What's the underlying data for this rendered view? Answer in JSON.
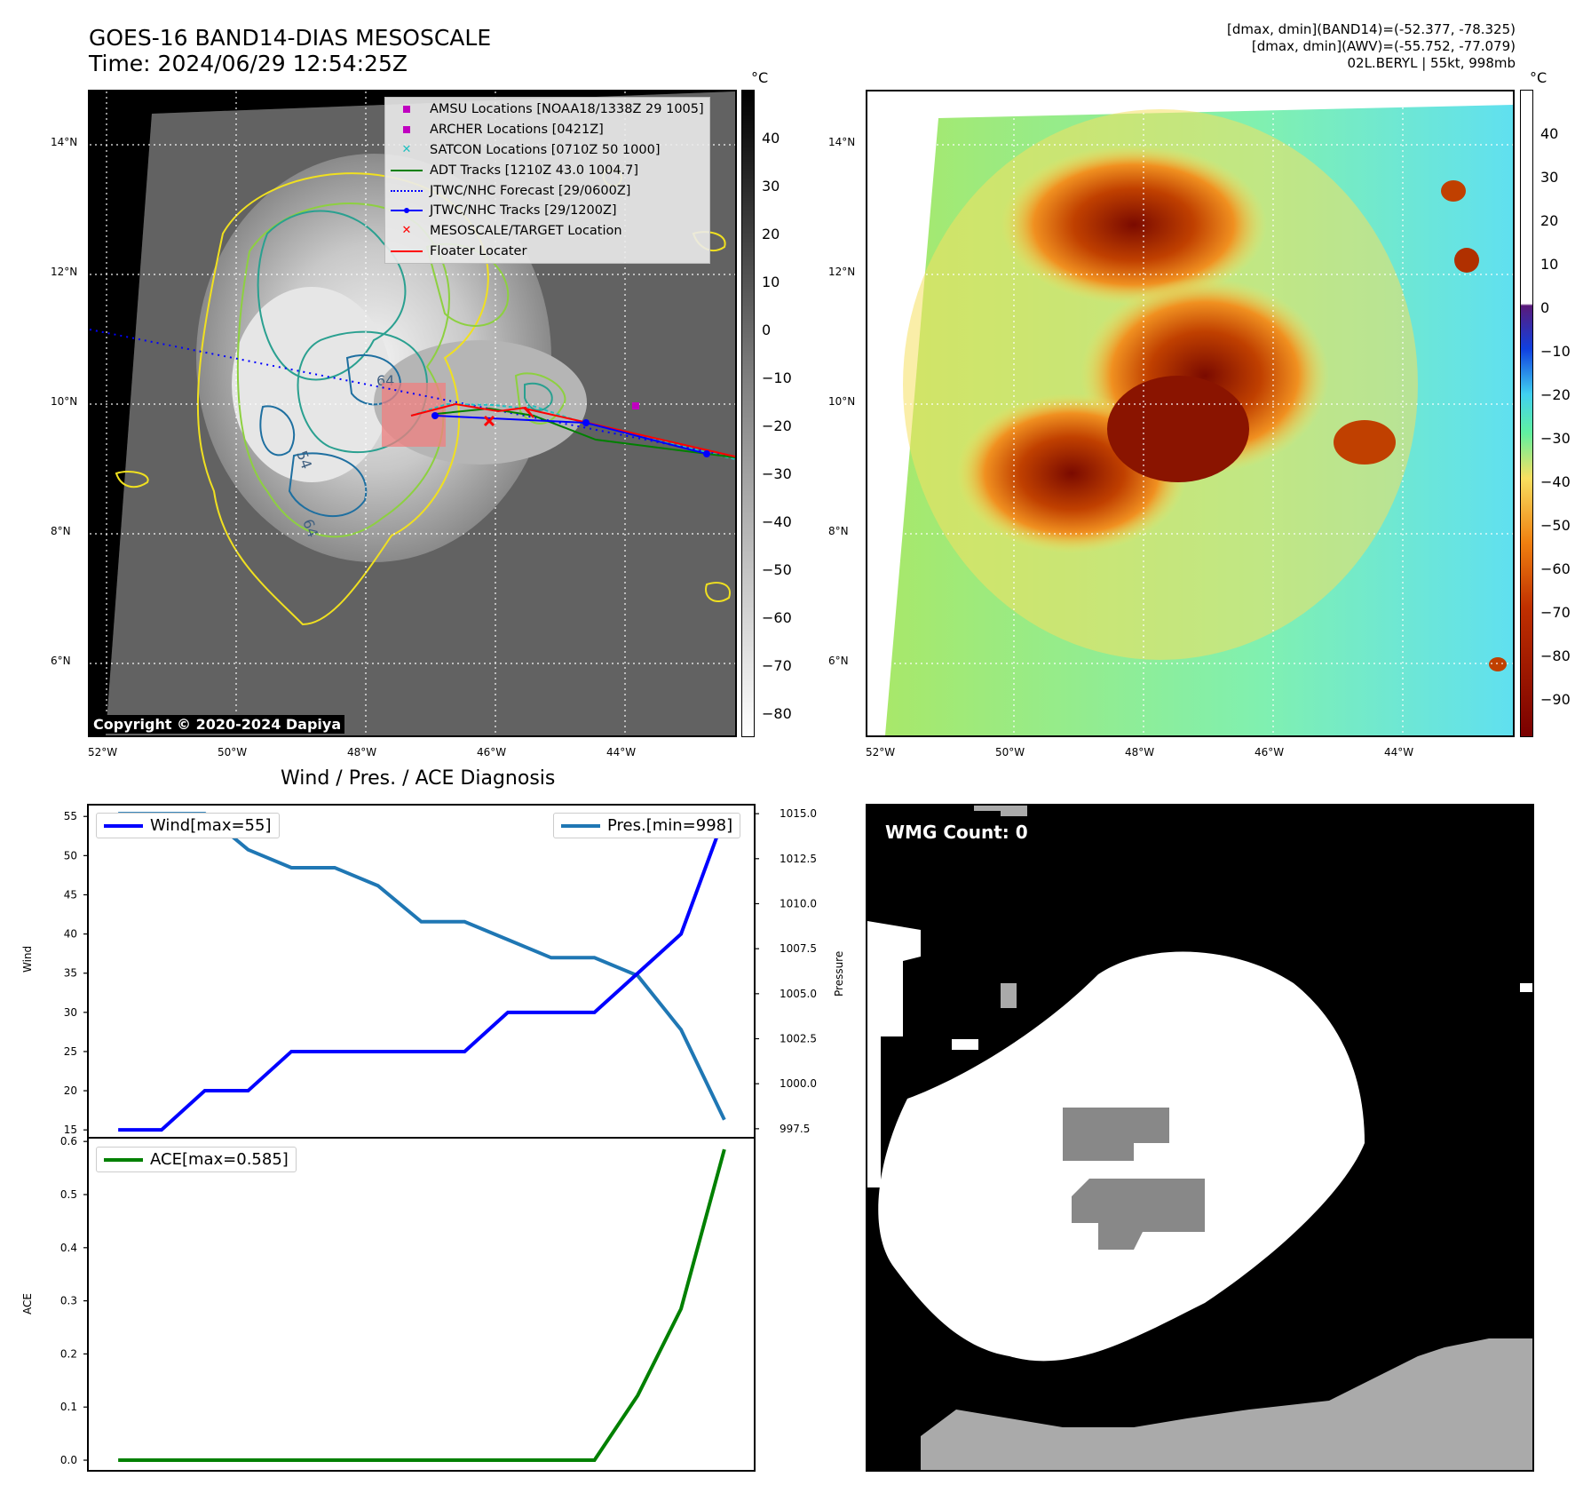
{
  "header": {
    "title_line1": "GOES-16 BAND14-DIAS MESOSCALE",
    "title_line2": "Time: 2024/06/29 12:54:25Z",
    "right_line1": "[dmax, dmin](BAND14)=(-52.377, -78.325)",
    "right_line2": "[dmax, dmin](AWV)=(-55.752, -77.079)",
    "right_line3": "02L.BERYL | 55kt, 998mb"
  },
  "map": {
    "lat_ticks": [
      "14°N",
      "12°N",
      "10°N",
      "8°N",
      "6°N"
    ],
    "lon_ticks": [
      "52°W",
      "50°W",
      "48°W",
      "46°W",
      "44°W"
    ],
    "copyright": "Copyright © 2020-2024 Dapiya",
    "contour_labels": [
      "54",
      "64",
      "64"
    ],
    "legend": [
      {
        "label": "AMSU Locations [NOAA18/1338Z 29 1005]",
        "color": "#c000c0",
        "marker": "square"
      },
      {
        "label": "ARCHER Locations [0421Z]",
        "color": "#c000c0",
        "marker": "square"
      },
      {
        "label": "SATCON Locations [0710Z 50 1000]",
        "color": "#20c0c0",
        "marker": "x"
      },
      {
        "label": "ADT Tracks [1210Z 43.0 1004.7]",
        "color": "#008000",
        "marker": "line"
      },
      {
        "label": "JTWC/NHC Forecast [29/0600Z]",
        "color": "#0000ff",
        "marker": "dotted"
      },
      {
        "label": "JTWC/NHC Tracks [29/1200Z]",
        "color": "#0000ff",
        "marker": "line-dot"
      },
      {
        "label": "MESOSCALE/TARGET Location",
        "color": "#ff0000",
        "marker": "x"
      },
      {
        "label": "Floater Locater",
        "color": "#ff0000",
        "marker": "line"
      }
    ]
  },
  "colorbar_left": {
    "unit": "°C",
    "ticks": [
      "40",
      "30",
      "20",
      "10",
      "0",
      "−10",
      "−20",
      "−30",
      "−40",
      "−50",
      "−60",
      "−70",
      "−80"
    ]
  },
  "colorbar_right": {
    "unit": "°C",
    "ticks": [
      "40",
      "30",
      "20",
      "10",
      "0",
      "−10",
      "−20",
      "−30",
      "−40",
      "−50",
      "−60",
      "−70",
      "−80",
      "−90"
    ]
  },
  "diagnosis": {
    "title": "Wind / Pres. / ACE Diagnosis",
    "wind_label": "Wind",
    "pressure_label": "Pressure",
    "ace_label": "ACE",
    "wind_legend": "Wind[max=55]",
    "pres_legend": "Pres.[min=998]",
    "ace_legend": "ACE[max=0.585]",
    "wind_ticks": [
      "55",
      "50",
      "45",
      "40",
      "35",
      "30",
      "25",
      "20",
      "15"
    ],
    "pres_ticks": [
      "1015.0",
      "1012.5",
      "1010.0",
      "1007.5",
      "1005.0",
      "1002.5",
      "1000.0",
      "997.5"
    ],
    "ace_ticks": [
      "0.6",
      "0.5",
      "0.4",
      "0.3",
      "0.2",
      "0.1",
      "0.0"
    ],
    "colors": {
      "wind": "#0000ff",
      "pres": "#1f77b4",
      "ace": "#008000"
    }
  },
  "wmg": {
    "label": "WMG Count: 0"
  },
  "chart_data": [
    {
      "type": "line",
      "title": "Wind / Pres. / ACE Diagnosis",
      "x": [
        0,
        1,
        2,
        3,
        4,
        5,
        6,
        7,
        8,
        9,
        10,
        11,
        12,
        13,
        14
      ],
      "series": [
        {
          "name": "Wind[max=55]",
          "axis": "left",
          "ylabel": "Wind",
          "ylim": [
            14,
            56.5
          ],
          "values": [
            15,
            15,
            20,
            20,
            25,
            25,
            25,
            25,
            25,
            30,
            30,
            30,
            35,
            40,
            55
          ]
        },
        {
          "name": "Pres.[min=998]",
          "axis": "right",
          "ylabel": "Pressure",
          "ylim": [
            997,
            1015.5
          ],
          "values": [
            1015,
            1015,
            1015,
            1013,
            1012,
            1012,
            1011,
            1009,
            1009,
            1008,
            1007,
            1007,
            1006,
            1003,
            998
          ]
        }
      ]
    },
    {
      "type": "line",
      "x": [
        0,
        1,
        2,
        3,
        4,
        5,
        6,
        7,
        8,
        9,
        10,
        11,
        12,
        13,
        14
      ],
      "series": [
        {
          "name": "ACE[max=0.585]",
          "ylabel": "ACE",
          "ylim": [
            -0.015,
            0.6
          ],
          "values": [
            0,
            0,
            0,
            0,
            0,
            0,
            0,
            0,
            0,
            0,
            0,
            0,
            0.122,
            0.285,
            0.585
          ]
        }
      ]
    }
  ]
}
